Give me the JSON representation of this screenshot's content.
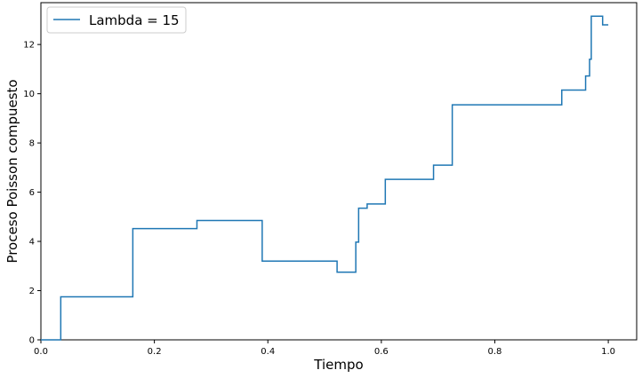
{
  "chart_data": {
    "type": "line",
    "step": true,
    "xlabel": "Tiempo",
    "ylabel": "Proceso Poisson compuesto",
    "xlim": [
      0,
      1.05
    ],
    "ylim": [
      0,
      13.7
    ],
    "xticks": [
      "0.0",
      "0.2",
      "0.4",
      "0.6",
      "0.8",
      "1.0"
    ],
    "yticks": [
      "0",
      "2",
      "4",
      "6",
      "8",
      "10",
      "12"
    ],
    "grid": false,
    "legend_position": "top-left",
    "series": [
      {
        "name": "Lambda = 15",
        "color": "#1f77b4",
        "points": [
          [
            0.0,
            0.0
          ],
          [
            0.035,
            0.0
          ],
          [
            0.035,
            1.75
          ],
          [
            0.162,
            1.75
          ],
          [
            0.162,
            4.52
          ],
          [
            0.275,
            4.52
          ],
          [
            0.275,
            4.85
          ],
          [
            0.39,
            4.85
          ],
          [
            0.39,
            3.2
          ],
          [
            0.522,
            3.2
          ],
          [
            0.522,
            2.75
          ],
          [
            0.555,
            2.75
          ],
          [
            0.555,
            3.97
          ],
          [
            0.56,
            3.97
          ],
          [
            0.56,
            5.35
          ],
          [
            0.575,
            5.35
          ],
          [
            0.575,
            5.52
          ],
          [
            0.607,
            5.52
          ],
          [
            0.607,
            6.52
          ],
          [
            0.692,
            6.52
          ],
          [
            0.692,
            7.1
          ],
          [
            0.725,
            7.1
          ],
          [
            0.725,
            9.55
          ],
          [
            0.918,
            9.55
          ],
          [
            0.918,
            10.15
          ],
          [
            0.96,
            10.15
          ],
          [
            0.96,
            10.72
          ],
          [
            0.967,
            10.72
          ],
          [
            0.967,
            11.4
          ],
          [
            0.97,
            11.4
          ],
          [
            0.97,
            13.15
          ],
          [
            0.99,
            13.15
          ],
          [
            0.99,
            12.8
          ],
          [
            1.0,
            12.8
          ]
        ]
      }
    ]
  }
}
